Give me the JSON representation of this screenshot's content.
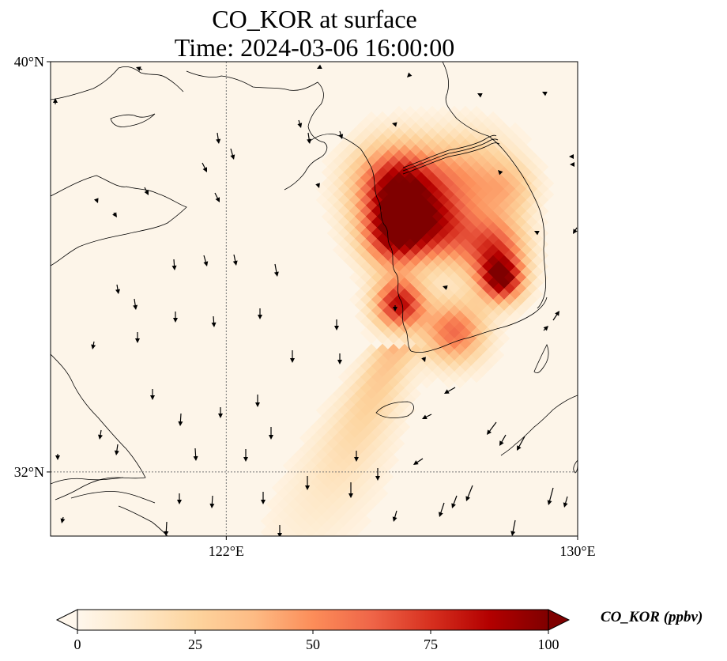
{
  "title": {
    "line1": "CO_KOR at surface",
    "line2": "Time: 2024-03-06 16:00:00"
  },
  "map": {
    "lon_range": [
      118,
      130
    ],
    "lat_range": [
      30.75,
      40
    ],
    "lat_ticks": [
      {
        "value": 40,
        "label": "40°N"
      },
      {
        "value": 32,
        "label": "32°N"
      }
    ],
    "lon_ticks": [
      {
        "value": 122,
        "label": "122°E"
      },
      {
        "value": 130,
        "label": "130°E"
      }
    ],
    "gridline_lon": 122,
    "gridline_lat": 32,
    "ocean_color": "#fdf5e9",
    "coastline_color": "#000000",
    "vector_color": "#000000"
  },
  "colorbar": {
    "label": "CO_KOR (ppbv)",
    "ticks": [
      "0",
      "25",
      "50",
      "75",
      "100"
    ],
    "min": 0,
    "max": 100,
    "colormap": "OrRd",
    "extend": "both",
    "colors": [
      "#fff7ec",
      "#fee8c8",
      "#fdd49e",
      "#fdbb84",
      "#fc8d59",
      "#ef6548",
      "#d7301f",
      "#b30000",
      "#7f0000"
    ]
  }
}
